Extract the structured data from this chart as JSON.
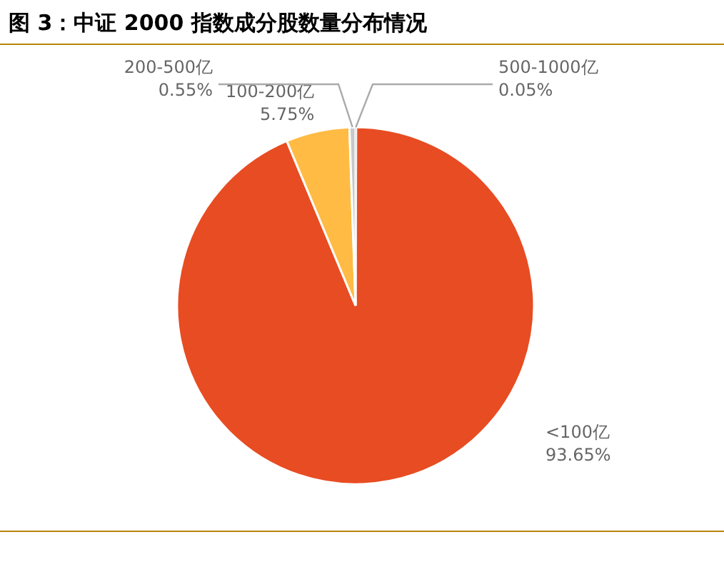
{
  "chart_data": {
    "type": "pie",
    "title": "图 3：中证 2000 指数成分股数量分布情况",
    "categories": [
      "500-1000亿",
      "<100亿",
      "100-200亿",
      "200-500亿"
    ],
    "values": [
      0.05,
      93.65,
      5.75,
      0.55
    ],
    "colors": [
      "#c8c8c8",
      "#e84c22",
      "#ffbb44",
      "#c8c8c8"
    ],
    "value_labels": [
      "0.05%",
      "93.65%",
      "5.75%",
      "0.55%"
    ]
  }
}
